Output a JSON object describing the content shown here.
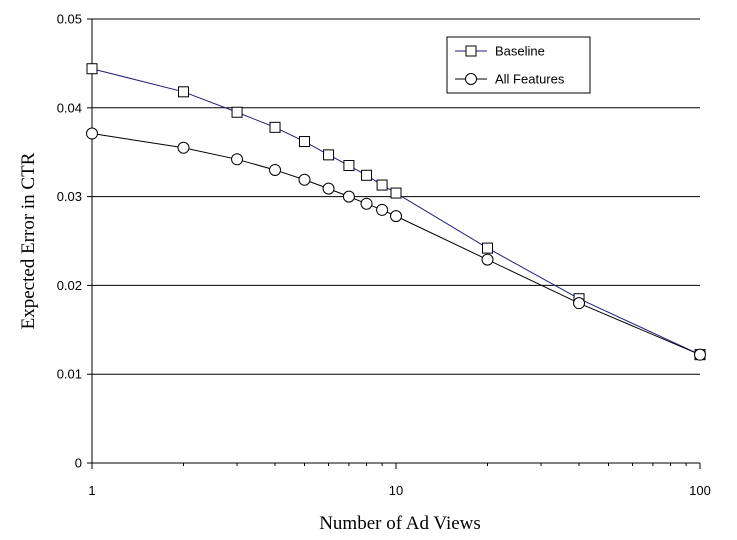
{
  "chart_data": {
    "type": "line",
    "xlabel": "Number of Ad Views",
    "ylabel": "Expected Error in CTR",
    "x_scale": "log",
    "xlim": [
      1,
      100
    ],
    "ylim": [
      0,
      0.05
    ],
    "x_ticks": [
      1,
      10,
      100
    ],
    "x_tick_labels": [
      "1",
      "10",
      "100"
    ],
    "y_ticks": [
      0,
      0.01,
      0.02,
      0.03,
      0.04,
      0.05
    ],
    "y_tick_labels": [
      "0",
      "0.01",
      "0.02",
      "0.03",
      "0.04",
      "0.05"
    ],
    "grid": "horizontal",
    "legend_position": "top-right",
    "series": [
      {
        "name": "Baseline",
        "marker": "square",
        "color": "#1f1f7a",
        "points": [
          {
            "x": 1,
            "y": 0.0444
          },
          {
            "x": 2,
            "y": 0.0418
          },
          {
            "x": 3,
            "y": 0.0395
          },
          {
            "x": 4,
            "y": 0.0378
          },
          {
            "x": 5,
            "y": 0.0362
          },
          {
            "x": 6,
            "y": 0.0347
          },
          {
            "x": 7,
            "y": 0.0335
          },
          {
            "x": 8,
            "y": 0.0324
          },
          {
            "x": 9,
            "y": 0.0313
          },
          {
            "x": 10,
            "y": 0.0304
          },
          {
            "x": 20,
            "y": 0.0242
          },
          {
            "x": 40,
            "y": 0.0185
          },
          {
            "x": 100,
            "y": 0.0122
          }
        ]
      },
      {
        "name": "All Features",
        "marker": "circle",
        "color": "#000000",
        "points": [
          {
            "x": 1,
            "y": 0.0371
          },
          {
            "x": 2,
            "y": 0.0355
          },
          {
            "x": 3,
            "y": 0.0342
          },
          {
            "x": 4,
            "y": 0.033
          },
          {
            "x": 5,
            "y": 0.0319
          },
          {
            "x": 6,
            "y": 0.0309
          },
          {
            "x": 7,
            "y": 0.03
          },
          {
            "x": 8,
            "y": 0.0292
          },
          {
            "x": 9,
            "y": 0.0285
          },
          {
            "x": 10,
            "y": 0.0278
          },
          {
            "x": 20,
            "y": 0.0229
          },
          {
            "x": 40,
            "y": 0.018
          },
          {
            "x": 100,
            "y": 0.0122
          }
        ]
      }
    ]
  }
}
